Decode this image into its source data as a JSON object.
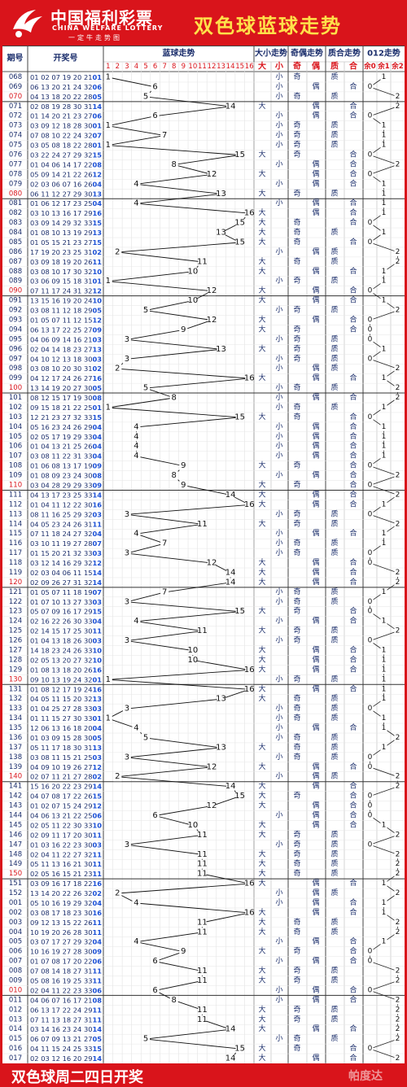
{
  "header": {
    "brand_cn": "中国福利彩票",
    "brand_en": "CHINA WELFARE LOTTERY",
    "slogan": "一定牛走势图",
    "title": "双色球蓝球走势"
  },
  "footer": {
    "text": "双色球周二四日开奖",
    "watermark": "帕度达"
  },
  "columns": {
    "period": "期号",
    "numbers": "开奖号",
    "blue_trend": "蓝球走势",
    "size": "大小走势",
    "parity": "奇偶走势",
    "prime": "质合走势",
    "mod3": "012走势"
  },
  "subheaders": {
    "big": "大",
    "small": "小",
    "odd": "奇",
    "even": "偶",
    "prime": "质",
    "composite": "合",
    "r0": "余0",
    "r1": "余1",
    "r2": "余2"
  },
  "colors": {
    "accent": "#d9141b",
    "title": "#ffe14a",
    "period_highlight": "#d9141b",
    "grid": "#c9c9c9"
  },
  "chart_data": {
    "type": "line",
    "title": "双色球蓝球走势",
    "x_type": "period",
    "y_range": [
      1,
      16
    ],
    "rows": [
      {
        "p": "068",
        "n": "01 02 07 19 20 21",
        "b": 1
      },
      {
        "p": "069",
        "n": "06 13 20 21 24 32",
        "b": 6
      },
      {
        "p": "070",
        "n": "04 13 18 20 22 28",
        "b": 5
      },
      {
        "p": "071",
        "n": "02 08 19 28 30 31",
        "b": 14
      },
      {
        "p": "072",
        "n": "01 14 20 21 23 27",
        "b": 6
      },
      {
        "p": "073",
        "n": "03 09 12 18 28 30",
        "b": 1
      },
      {
        "p": "074",
        "n": "07 08 10 22 24 32",
        "b": 7
      },
      {
        "p": "075",
        "n": "03 05 08 18 22 28",
        "b": 1
      },
      {
        "p": "076",
        "n": "03 22 24 27 29 32",
        "b": 15
      },
      {
        "p": "077",
        "n": "01 04 06 14 17 22",
        "b": 8
      },
      {
        "p": "078",
        "n": "05 09 14 21 22 26",
        "b": 12
      },
      {
        "p": "079",
        "n": "02 03 06 07 16 26",
        "b": 4
      },
      {
        "p": "080",
        "n": "06 11 12 27 29 30",
        "b": 13
      },
      {
        "p": "081",
        "n": "01 06 12 17 23 25",
        "b": 4
      },
      {
        "p": "082",
        "n": "03 10 13 16 17 29",
        "b": 16
      },
      {
        "p": "083",
        "n": "03 09 14 29 32 33",
        "b": 15
      },
      {
        "p": "084",
        "n": "01 08 10 13 19 29",
        "b": 13
      },
      {
        "p": "085",
        "n": "01 05 15 21 23 27",
        "b": 15
      },
      {
        "p": "086",
        "n": "17 19 20 23 25 31",
        "b": 2
      },
      {
        "p": "087",
        "n": "03 09 18 19 20 26",
        "b": 11
      },
      {
        "p": "088",
        "n": "03 08 10 17 30 32",
        "b": 10
      },
      {
        "p": "089",
        "n": "03 06 09 15 18 31",
        "b": 1
      },
      {
        "p": "090",
        "n": "07 11 17 24 31 32",
        "b": 12
      },
      {
        "p": "091",
        "n": "13 15 16 19 20 24",
        "b": 10
      },
      {
        "p": "092",
        "n": "03 08 11 12 18 29",
        "b": 5
      },
      {
        "p": "093",
        "n": "01 05 07 11 12 15",
        "b": 12
      },
      {
        "p": "094",
        "n": "06 13 17 22 25 27",
        "b": 9
      },
      {
        "p": "095",
        "n": "04 06 09 14 16 21",
        "b": 3
      },
      {
        "p": "096",
        "n": "02 04 14 18 23 27",
        "b": 13
      },
      {
        "p": "097",
        "n": "04 10 12 13 18 30",
        "b": 3
      },
      {
        "p": "098",
        "n": "03 08 10 20 30 31",
        "b": 2
      },
      {
        "p": "099",
        "n": "04 12 17 24 26 27",
        "b": 16
      },
      {
        "p": "100",
        "n": "13 14 19 20 27 30",
        "b": 5
      },
      {
        "p": "101",
        "n": "08 12 15 17 19 30",
        "b": 8
      },
      {
        "p": "102",
        "n": "09 15 18 21 22 25",
        "b": 1
      },
      {
        "p": "103",
        "n": "12 21 23 27 32 33",
        "b": 15
      },
      {
        "p": "104",
        "n": "05 16 23 24 26 29",
        "b": 4
      },
      {
        "p": "105",
        "n": "02 05 17 19 29 33",
        "b": 4
      },
      {
        "p": "106",
        "n": "01 04 13 21 25 26",
        "b": 4
      },
      {
        "p": "107",
        "n": "03 08 11 22 31 33",
        "b": 4
      },
      {
        "p": "108",
        "n": "01 06 08 13 17 19",
        "b": 9
      },
      {
        "p": "109",
        "n": "01 08 09 23 24 30",
        "b": 8
      },
      {
        "p": "110",
        "n": "03 04 28 29 29 33",
        "b": 9
      },
      {
        "p": "111",
        "n": "04 13 17 23 25 33",
        "b": 14
      },
      {
        "p": "112",
        "n": "01 04 11 12 22 30",
        "b": 16
      },
      {
        "p": "113",
        "n": "08 11 16 25 29 32",
        "b": 3
      },
      {
        "p": "114",
        "n": "04 05 23 24 26 31",
        "b": 11
      },
      {
        "p": "115",
        "n": "07 11 18 24 27 32",
        "b": 4
      },
      {
        "p": "116",
        "n": "03 10 11 19 27 28",
        "b": 7
      },
      {
        "p": "117",
        "n": "01 15 20 21 32 33",
        "b": 3
      },
      {
        "p": "118",
        "n": "03 12 14 16 29 32",
        "b": 12
      },
      {
        "p": "119",
        "n": "02 03 04 06 11 15",
        "b": 14
      },
      {
        "p": "120",
        "n": "02 09 26 27 31 32",
        "b": 14
      },
      {
        "p": "121",
        "n": "01 05 07 11 18 19",
        "b": 7
      },
      {
        "p": "122",
        "n": "01 07 10 13 27 33",
        "b": 3
      },
      {
        "p": "123",
        "n": "05 07 09 16 17 29",
        "b": 15
      },
      {
        "p": "124",
        "n": "02 16 22 26 30 33",
        "b": 4
      },
      {
        "p": "125",
        "n": "02 14 15 17 25 30",
        "b": 11
      },
      {
        "p": "126",
        "n": "01 04 13 18 26 30",
        "b": 3
      },
      {
        "p": "127",
        "n": "14 18 23 24 26 33",
        "b": 10
      },
      {
        "p": "128",
        "n": "02 05 13 20 27 32",
        "b": 10
      },
      {
        "p": "129",
        "n": "01 08 13 18 20 26",
        "b": 16
      },
      {
        "p": "130",
        "n": "09 10 13 19 24 32",
        "b": 1
      },
      {
        "p": "131",
        "n": "01 08 12 17 19 24",
        "b": 16
      },
      {
        "p": "132",
        "n": "04 05 11 15 20 32",
        "b": 13
      },
      {
        "p": "133",
        "n": "01 04 25 27 28 33",
        "b": 3
      },
      {
        "p": "134",
        "n": "01 11 15 27 30 33",
        "b": 1
      },
      {
        "p": "135",
        "n": "12 06 13 16 18 20",
        "b": 4
      },
      {
        "p": "136",
        "n": "01 03 09 15 28 30",
        "b": 5
      },
      {
        "p": "137",
        "n": "05 11 17 18 30 31",
        "b": 13
      },
      {
        "p": "138",
        "n": "03 08 11 15 21 25",
        "b": 3
      },
      {
        "p": "139",
        "n": "04 09 10 19 26 27",
        "b": 12
      },
      {
        "p": "140",
        "n": "02 07 11 21 27 28",
        "b": 2
      },
      {
        "p": "141",
        "n": "15 16 20 22 23 29",
        "b": 14
      },
      {
        "p": "142",
        "n": "04 07 08 17 22 26",
        "b": 15
      },
      {
        "p": "143",
        "n": "01 02 07 15 24 29",
        "b": 12
      },
      {
        "p": "144",
        "n": "04 06 13 21 22 25",
        "b": 6
      },
      {
        "p": "145",
        "n": "02 05 11 22 30 33",
        "b": 10
      },
      {
        "p": "146",
        "n": "02 09 11 17 20 30",
        "b": 11
      },
      {
        "p": "147",
        "n": "01 03 16 22 23 30",
        "b": 3
      },
      {
        "p": "148",
        "n": "02 04 11 22 27 32",
        "b": 11
      },
      {
        "p": "149",
        "n": "05 11 13 16 21 30",
        "b": 11
      },
      {
        "p": "150",
        "n": "02 05 16 15 21 23",
        "b": 11
      },
      {
        "p": "151",
        "n": "03 09 16 17 18 22",
        "b": 16
      },
      {
        "p": "152",
        "n": "13 14 20 22 26 32",
        "b": 2
      },
      {
        "p": "001",
        "n": "05 10 16 19 29 32",
        "b": 4
      },
      {
        "p": "002",
        "n": "03 08 17 18 23 30",
        "b": 16
      },
      {
        "p": "003",
        "n": "09 12 13 15 22 26",
        "b": 11
      },
      {
        "p": "004",
        "n": "10 19 20 26 28 30",
        "b": 11
      },
      {
        "p": "005",
        "n": "03 07 17 27 29 32",
        "b": 4
      },
      {
        "p": "006",
        "n": "10 16 19 27 28 30",
        "b": 9
      },
      {
        "p": "007",
        "n": "01 07 08 17 20 22",
        "b": 6
      },
      {
        "p": "008",
        "n": "07 08 14 18 27 31",
        "b": 11
      },
      {
        "p": "009",
        "n": "05 08 16 19 25 33",
        "b": 11
      },
      {
        "p": "010",
        "n": "02 04 11 22 23 33",
        "b": 6
      },
      {
        "p": "011",
        "n": "04 06 07 16 17 21",
        "b": 8
      },
      {
        "p": "012",
        "n": "06 13 17 22 24 29",
        "b": 11
      },
      {
        "p": "013",
        "n": "07 11 13 18 27 31",
        "b": 11
      },
      {
        "p": "014",
        "n": "03 14 16 23 24 30",
        "b": 14
      },
      {
        "p": "015",
        "n": "06 07 09 13 21 27",
        "b": 5
      },
      {
        "p": "016",
        "n": "04 11 15 24 25 33",
        "b": 15
      },
      {
        "p": "017",
        "n": "02 03 12 16 20 29",
        "b": 14
      }
    ]
  }
}
